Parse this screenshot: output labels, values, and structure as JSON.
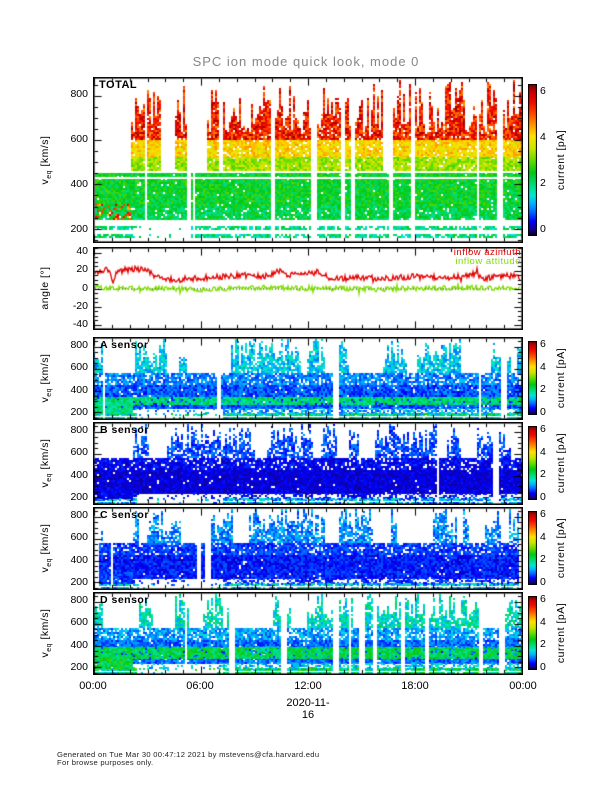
{
  "title": "SPC ion mode quick look, mode 0",
  "footer": {
    "line1": "Generated on Tue Mar 30 00:47:12 2021 by mstevens@cfa.harvard.edu",
    "line2": "For browse purposes only."
  },
  "chart_data": {
    "x_axis": {
      "tick_labels": [
        "00:00",
        "06:00",
        "12:00",
        "18:00",
        "00:00"
      ],
      "date_label": "2020-11-16",
      "hours_range": [
        0,
        24
      ],
      "major_step_hours": 6,
      "minor_step_hours": 1
    },
    "panels": [
      {
        "id": "total",
        "type": "spectrogram",
        "panel_label": "TOTAL",
        "y_axis": {
          "label_main": "v",
          "label_sub": "eq",
          "label_units": " [km/s]",
          "tick_labels": [
            "800",
            "600",
            "400",
            "200"
          ],
          "tick_values": [
            800,
            600,
            400,
            200
          ],
          "range": [
            140,
            880
          ],
          "minor_step": 50,
          "major_step": 200
        },
        "colorbar": {
          "label": "current [pA]",
          "tick_labels": [
            "0",
            "2",
            "4",
            "6"
          ],
          "tick_values": [
            0,
            2,
            4,
            6
          ],
          "range": [
            0,
            6
          ]
        },
        "render": {
          "seed": 7,
          "dropout_p": 0.085,
          "tall_on_p": 0.8,
          "tall_gap_t": [
            0.028,
            0.085
          ],
          "low_gap": {
            "t": [
              0.095,
              0.225
            ],
            "vmax": 245,
            "p": 0.12
          },
          "bands": [
            {
              "v": [
                600,
                860
              ],
              "p": 0.92,
              "val": [
                4.6,
                6.2
              ],
              "tall": true
            },
            {
              "v": [
                520,
                600
              ],
              "p": 0.93,
              "val": [
                3.6,
                4.6
              ],
              "tall": true
            },
            {
              "v": [
                455,
                520
              ],
              "p": 0.95,
              "val": [
                2.8,
                3.8
              ],
              "tall": true
            },
            {
              "v": [
                300,
                455
              ],
              "p": 0.97,
              "val": [
                1.9,
                2.9
              ]
            },
            {
              "v": [
                245,
                300
              ],
              "p": 0.92,
              "val": [
                1.7,
                2.7
              ]
            },
            {
              "v": [
                245,
                310
              ],
              "p": 0.3,
              "val": [
                4.2,
                6.0
              ],
              "t": [
                0,
                0.085
              ]
            },
            {
              "v": [
                140,
                245
              ],
              "p": 0.8,
              "val": [
                1.3,
                2.5
              ],
              "rows": true
            }
          ],
          "white_lines": [
            432,
            462
          ]
        }
      },
      {
        "id": "angle",
        "type": "line",
        "panel_label": "",
        "y_axis": {
          "label_main": "angle",
          "label_sub": "",
          "label_units": " [°]",
          "tick_labels": [
            "40",
            "20",
            "0",
            "-20",
            "-40"
          ],
          "tick_values": [
            40,
            20,
            0,
            -20,
            -40
          ],
          "range": [
            -45,
            45
          ],
          "minor_step": 5,
          "major_step": 20
        },
        "zero_line": true,
        "series": [
          {
            "name": "inflow azimuth",
            "color": "#e00000",
            "noise": 3.2,
            "x_hours": [
              0,
              0.7,
              1.0,
              1.3,
              1.7,
              2.3,
              3.0,
              3.4,
              3.7,
              4.5,
              5.5,
              6.5,
              7.5,
              8.2,
              9,
              9.8,
              10.4,
              10.8,
              11.5,
              12,
              12.6,
              13.2,
              14,
              15,
              16,
              17,
              18,
              19,
              20,
              20.7,
              21.4,
              22,
              22.6,
              23.2,
              24
            ],
            "y_deg": [
              18,
              21,
              8,
              17,
              20,
              21,
              20,
              12,
              11,
              10,
              11,
              12,
              13,
              15,
              13,
              14,
              19,
              14,
              15,
              16,
              18,
              12,
              11,
              12,
              11,
              12,
              13,
              12,
              12,
              13,
              16,
              11,
              13,
              14,
              12
            ]
          },
          {
            "name": "inflow attitude",
            "color": "#7ddf00",
            "noise": 2.7,
            "x_hours": [
              0,
              2,
              4,
              6,
              8,
              10,
              12,
              14,
              16,
              18,
              20,
              22,
              24
            ],
            "y_deg": [
              1,
              0,
              0,
              -1,
              0,
              1,
              0,
              0,
              -1,
              0,
              0,
              1,
              0
            ]
          }
        ]
      },
      {
        "id": "sensor_a",
        "type": "spectrogram",
        "panel_label": "A sensor",
        "y_axis": {
          "label_main": "v",
          "label_sub": "eq",
          "label_units": " [km/s]",
          "tick_labels": [
            "800",
            "600",
            "400",
            "200"
          ],
          "tick_values": [
            800,
            600,
            400,
            200
          ],
          "range": [
            140,
            880
          ],
          "minor_step": 50,
          "major_step": 200
        },
        "colorbar": {
          "label": "current [pA]",
          "tick_labels": [
            "0",
            "2",
            "4",
            "6"
          ],
          "tick_values": [
            0,
            2,
            4,
            6
          ],
          "range": [
            0,
            6
          ]
        },
        "render": {
          "seed": 21,
          "dropout_p": 0.06,
          "tall_on_p": 0.62,
          "tall_gap_t": [
            0.02,
            0.09
          ],
          "low_gap": {
            "t": [
              0.1,
              0.3
            ],
            "vmax": 245,
            "p": 0.15
          },
          "bands": [
            {
              "v": [
                560,
                860
              ],
              "p": 0.85,
              "val": [
                0.8,
                1.8
              ],
              "tall": true
            },
            {
              "v": [
                455,
                560
              ],
              "p": 0.8,
              "val": [
                0.5,
                1.3
              ]
            },
            {
              "v": [
                245,
                455
              ],
              "p": 0.97,
              "val": [
                0.3,
                1.1
              ]
            },
            {
              "v": [
                280,
                345
              ],
              "p": 0.85,
              "val": [
                1.6,
                2.4
              ]
            },
            {
              "v": [
                200,
                245
              ],
              "p": 0.55,
              "val": [
                0.5,
                1.5
              ]
            },
            {
              "v": [
                140,
                200
              ],
              "p": 0.9,
              "val": [
                0.8,
                2.6
              ]
            },
            {
              "v": [
                200,
                310
              ],
              "p": 0.95,
              "val": [
                1.5,
                2.3
              ],
              "t": [
                0,
                0.09
              ]
            }
          ]
        }
      },
      {
        "id": "sensor_b",
        "type": "spectrogram",
        "panel_label": "B sensor",
        "y_axis": {
          "label_main": "v",
          "label_sub": "eq",
          "label_units": " [km/s]",
          "tick_labels": [
            "800",
            "600",
            "400",
            "200"
          ],
          "tick_values": [
            800,
            600,
            400,
            200
          ],
          "range": [
            140,
            880
          ],
          "minor_step": 50,
          "major_step": 200
        },
        "colorbar": {
          "label": "current [pA]",
          "tick_labels": [
            "0",
            "2",
            "4",
            "6"
          ],
          "tick_values": [
            0,
            2,
            4,
            6
          ],
          "range": [
            0,
            6
          ]
        },
        "render": {
          "seed": 33,
          "dropout_p": 0.06,
          "tall_on_p": 0.6,
          "tall_gap_t": [
            0.02,
            0.09
          ],
          "low_gap": {
            "t": [
              0.1,
              0.3
            ],
            "vmax": 245,
            "p": 0.15
          },
          "bands": [
            {
              "v": [
                560,
                860
              ],
              "p": 0.75,
              "val": [
                0.3,
                1.0
              ],
              "tall": true
            },
            {
              "v": [
                455,
                560
              ],
              "p": 0.85,
              "val": [
                0.1,
                0.6
              ]
            },
            {
              "v": [
                245,
                455
              ],
              "p": 0.98,
              "val": [
                0.05,
                0.45
              ]
            },
            {
              "v": [
                200,
                245
              ],
              "p": 0.5,
              "val": [
                0.1,
                0.6
              ]
            },
            {
              "v": [
                140,
                200
              ],
              "p": 0.7,
              "val": [
                0.4,
                1.8
              ]
            },
            {
              "v": [
                200,
                310
              ],
              "p": 0.92,
              "val": [
                0.1,
                0.5
              ],
              "t": [
                0,
                0.09
              ]
            }
          ]
        }
      },
      {
        "id": "sensor_c",
        "type": "spectrogram",
        "panel_label": "C sensor",
        "y_axis": {
          "label_main": "v",
          "label_sub": "eq",
          "label_units": " [km/s]",
          "tick_labels": [
            "800",
            "600",
            "400",
            "200"
          ],
          "tick_values": [
            800,
            600,
            400,
            200
          ],
          "range": [
            140,
            880
          ],
          "minor_step": 50,
          "major_step": 200
        },
        "colorbar": {
          "label": "current [pA]",
          "tick_labels": [
            "0",
            "2",
            "4",
            "6"
          ],
          "tick_values": [
            0,
            2,
            4,
            6
          ],
          "range": [
            0,
            6
          ]
        },
        "render": {
          "seed": 45,
          "dropout_p": 0.06,
          "tall_on_p": 0.62,
          "tall_gap_t": [
            0.02,
            0.09
          ],
          "low_gap": {
            "t": [
              0.1,
              0.3
            ],
            "vmax": 245,
            "p": 0.15
          },
          "bands": [
            {
              "v": [
                560,
                860
              ],
              "p": 0.78,
              "val": [
                0.5,
                1.4
              ],
              "tall": true
            },
            {
              "v": [
                455,
                560
              ],
              "p": 0.85,
              "val": [
                0.3,
                0.9
              ]
            },
            {
              "v": [
                245,
                455
              ],
              "p": 0.98,
              "val": [
                0.15,
                0.75
              ]
            },
            {
              "v": [
                200,
                245
              ],
              "p": 0.5,
              "val": [
                0.2,
                0.8
              ]
            },
            {
              "v": [
                140,
                200
              ],
              "p": 0.8,
              "val": [
                0.5,
                2.0
              ]
            },
            {
              "v": [
                200,
                310
              ],
              "p": 0.92,
              "val": [
                0.3,
                0.9
              ],
              "t": [
                0,
                0.09
              ]
            }
          ]
        }
      },
      {
        "id": "sensor_d",
        "type": "spectrogram",
        "panel_label": "D sensor",
        "y_axis": {
          "label_main": "v",
          "label_sub": "eq",
          "label_units": " [km/s]",
          "tick_labels": [
            "800",
            "600",
            "400",
            "200"
          ],
          "tick_values": [
            800,
            600,
            400,
            200
          ],
          "range": [
            140,
            880
          ],
          "minor_step": 50,
          "major_step": 200
        },
        "colorbar": {
          "label": "current [pA]",
          "tick_labels": [
            "0",
            "2",
            "4",
            "6"
          ],
          "tick_values": [
            0,
            2,
            4,
            6
          ],
          "range": [
            0,
            6
          ]
        },
        "render": {
          "seed": 57,
          "dropout_p": 0.06,
          "tall_on_p": 0.68,
          "tall_gap_t": [
            0.02,
            0.09
          ],
          "low_gap": {
            "t": [
              0.1,
              0.3
            ],
            "vmax": 245,
            "p": 0.15
          },
          "bands": [
            {
              "v": [
                560,
                860
              ],
              "p": 0.85,
              "val": [
                1.0,
                2.2
              ],
              "tall": true
            },
            {
              "v": [
                455,
                560
              ],
              "p": 0.8,
              "val": [
                0.6,
                1.5
              ]
            },
            {
              "v": [
                245,
                455
              ],
              "p": 0.97,
              "val": [
                0.4,
                1.2
              ]
            },
            {
              "v": [
                290,
                385
              ],
              "p": 0.88,
              "val": [
                1.7,
                2.7
              ]
            },
            {
              "v": [
                200,
                245
              ],
              "p": 0.55,
              "val": [
                0.7,
                1.8
              ]
            },
            {
              "v": [
                140,
                200
              ],
              "p": 0.92,
              "val": [
                1.0,
                3.0
              ]
            },
            {
              "v": [
                200,
                310
              ],
              "p": 0.95,
              "val": [
                1.8,
                2.8
              ],
              "t": [
                0,
                0.09
              ]
            }
          ]
        }
      }
    ]
  }
}
